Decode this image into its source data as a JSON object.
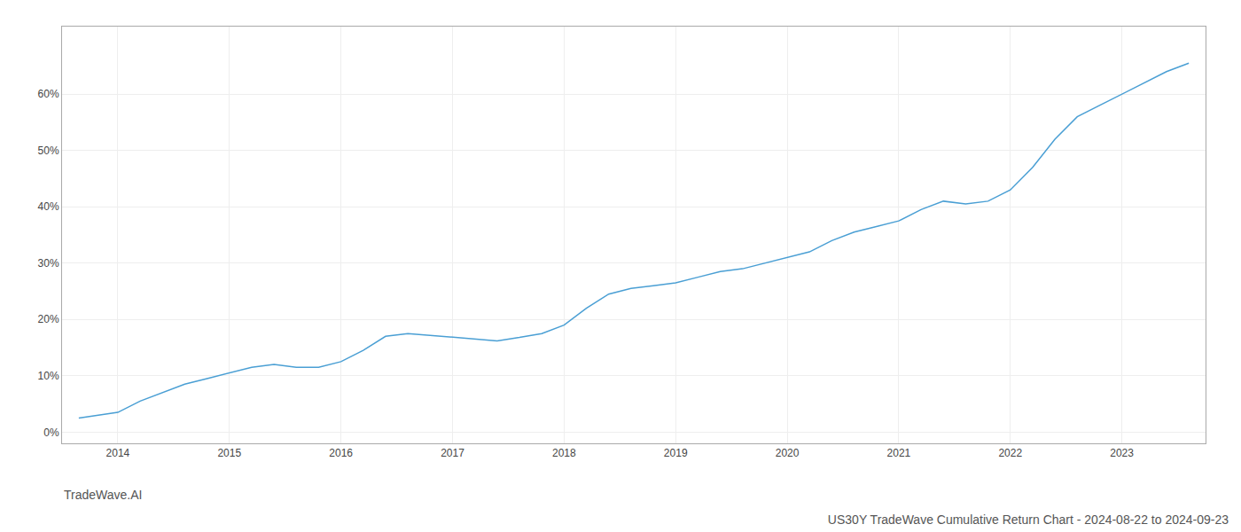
{
  "chart_data": {
    "type": "line",
    "title": "US30Y TradeWave Cumulative Return Chart - 2024-08-22 to 2024-09-23",
    "annotations": [
      "TradeWave.AI"
    ],
    "x": [
      2013.65,
      2014.0,
      2014.2,
      2014.4,
      2014.6,
      2014.8,
      2015.0,
      2015.2,
      2015.4,
      2015.6,
      2015.8,
      2016.0,
      2016.2,
      2016.4,
      2016.6,
      2016.8,
      2017.0,
      2017.2,
      2017.4,
      2017.6,
      2017.8,
      2018.0,
      2018.2,
      2018.4,
      2018.6,
      2018.8,
      2019.0,
      2019.2,
      2019.4,
      2019.6,
      2019.8,
      2020.0,
      2020.2,
      2020.4,
      2020.6,
      2020.8,
      2021.0,
      2021.2,
      2021.4,
      2021.6,
      2021.8,
      2022.0,
      2022.2,
      2022.4,
      2022.6,
      2022.8,
      2023.0,
      2023.2,
      2023.4,
      2023.6
    ],
    "values": [
      2.5,
      3.5,
      5.5,
      7.0,
      8.5,
      9.5,
      10.5,
      11.5,
      12.0,
      11.5,
      11.5,
      12.5,
      14.5,
      17.0,
      17.5,
      17.2,
      16.8,
      16.5,
      16.2,
      16.8,
      17.5,
      19.0,
      22.0,
      24.5,
      25.5,
      26.0,
      26.5,
      27.5,
      28.5,
      29.0,
      30.0,
      31.0,
      32.0,
      34.0,
      35.5,
      36.5,
      37.5,
      39.5,
      41.0,
      40.5,
      41.0,
      43.0,
      47.0,
      52.0,
      56.0,
      58.0,
      60.0,
      62.0,
      64.0,
      65.5
    ],
    "color": "#4a9fd4",
    "xlim": [
      2013.5,
      2023.75
    ],
    "xticks": [
      2014,
      2015,
      2016,
      2017,
      2018,
      2019,
      2020,
      2021,
      2022,
      2023
    ],
    "ylim": [
      -2,
      72
    ],
    "yticks": [
      {
        "value": 0,
        "label": "0%"
      },
      {
        "value": 10,
        "label": "10%"
      },
      {
        "value": 20,
        "label": "20%"
      },
      {
        "value": 30,
        "label": "30%"
      },
      {
        "value": 40,
        "label": "40%"
      },
      {
        "value": 50,
        "label": "50%"
      },
      {
        "value": 60,
        "label": "60%"
      }
    ],
    "grid": true
  }
}
